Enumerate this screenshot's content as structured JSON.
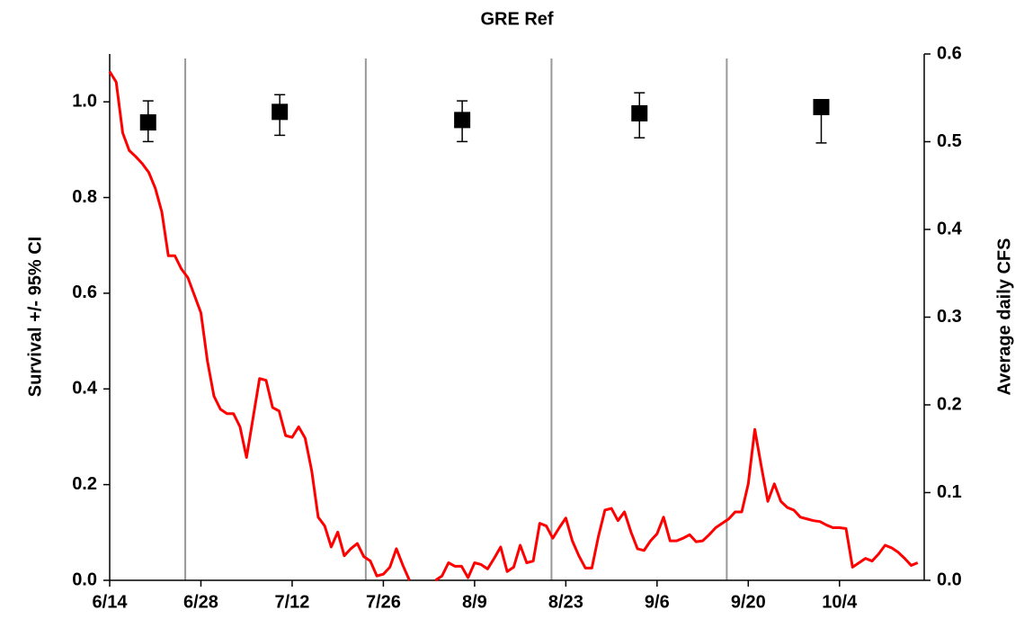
{
  "chart_data": {
    "type": "combo",
    "title": "GRE Ref",
    "ylabel": "Survival +/- 95% CI",
    "y2label": "Average daily CFS",
    "xlim": [
      0,
      125
    ],
    "xticks": [
      {
        "value": 0,
        "label": "6/14"
      },
      {
        "value": 14,
        "label": "6/28"
      },
      {
        "value": 28,
        "label": "7/12"
      },
      {
        "value": 42,
        "label": "7/26"
      },
      {
        "value": 56,
        "label": "8/9"
      },
      {
        "value": 70,
        "label": "8/23"
      },
      {
        "value": 84,
        "label": "9/6"
      },
      {
        "value": 98,
        "label": "9/20"
      },
      {
        "value": 112,
        "label": "10/4"
      }
    ],
    "ylim": [
      0,
      1.1
    ],
    "yticks": [
      {
        "value": 0,
        "label": "0.0"
      },
      0.2,
      0.4,
      0.6,
      0.8,
      {
        "value": 1,
        "label": "1.0"
      }
    ],
    "y2lim": [
      0,
      0.6
    ],
    "y2ticks": [
      {
        "value": 0,
        "label": "0.0"
      },
      0.1,
      0.2,
      0.3,
      0.4,
      0.5,
      0.6
    ],
    "vlines": [
      11.6,
      39.3,
      67.8,
      94.7
    ],
    "series": [
      {
        "type": "scatter",
        "color": "#000000",
        "x": [
          5.9,
          26.1,
          54.1,
          81.3,
          109.2
        ],
        "values": [
          0.957,
          0.979,
          0.962,
          0.976,
          0.989
        ],
        "lower": [
          0.917,
          0.93,
          0.917,
          0.925,
          0.914
        ],
        "upper": [
          1.002,
          1.015,
          1.002,
          1.019,
          0.989
        ]
      },
      {
        "type": "line",
        "axis": "y2",
        "color": "#ff0000",
        "x": [
          0,
          1,
          2,
          3,
          4,
          5,
          6,
          7,
          8,
          9,
          10,
          11,
          12,
          13,
          14,
          15,
          16,
          17,
          18,
          19,
          20,
          21,
          22,
          23,
          24,
          25,
          26,
          27,
          28,
          29,
          30,
          31,
          32,
          33,
          34,
          35,
          36,
          37,
          38,
          39,
          40,
          41,
          42,
          43,
          44,
          45,
          46,
          47,
          48,
          49,
          50,
          51,
          52,
          53,
          54,
          55,
          56,
          57,
          58,
          59,
          60,
          61,
          62,
          63,
          64,
          65,
          66,
          67,
          68,
          69,
          70,
          71,
          72,
          73,
          74,
          75,
          76,
          77,
          78,
          79,
          80,
          81,
          82,
          83,
          84,
          85,
          86,
          87,
          88,
          89,
          90,
          91,
          92,
          93,
          94,
          95,
          96,
          97,
          98,
          99,
          100,
          101,
          102,
          103,
          104,
          105,
          106,
          107,
          108,
          109,
          110,
          111,
          112,
          113,
          114,
          115,
          116,
          117,
          118,
          119,
          120,
          121,
          122,
          123,
          124
        ],
        "values": [
          0.58,
          0.568,
          0.51,
          0.49,
          0.483,
          0.475,
          0.465,
          0.447,
          0.42,
          0.37,
          0.37,
          0.355,
          0.345,
          0.325,
          0.305,
          0.25,
          0.21,
          0.195,
          0.19,
          0.19,
          0.175,
          0.14,
          0.185,
          0.23,
          0.228,
          0.197,
          0.193,
          0.165,
          0.163,
          0.175,
          0.162,
          0.125,
          0.072,
          0.062,
          0.038,
          0.055,
          0.028,
          0.036,
          0.042,
          0.027,
          0.022,
          0.005,
          0.007,
          0.015,
          0.036,
          0.017,
          0,
          null,
          null,
          null,
          0,
          0.005,
          0.02,
          0.016,
          0.016,
          0.003,
          0.02,
          0.018,
          0.013,
          0.025,
          0.038,
          0.01,
          0.015,
          0.04,
          0.02,
          0.022,
          0.065,
          0.062,
          0.048,
          0.06,
          0.071,
          0.045,
          0.028,
          0.014,
          0.014,
          0.05,
          0.08,
          0.082,
          0.068,
          0.078,
          0.055,
          0.036,
          0.034,
          0.045,
          0.053,
          0.072,
          0.045,
          0.045,
          0.048,
          0.052,
          0.044,
          0.045,
          0.052,
          0.06,
          0.065,
          0.07,
          0.078,
          0.078,
          0.11,
          0.172,
          0.13,
          0.09,
          0.11,
          0.09,
          0.083,
          0.08,
          0.072,
          0.07,
          0.068,
          0.067,
          0.063,
          0.06,
          0.06,
          0.059,
          0.015,
          0.02,
          0.025,
          0.022,
          0.03,
          0.04,
          0.037,
          0.032,
          0.025,
          0.017,
          0.02
        ]
      }
    ]
  }
}
